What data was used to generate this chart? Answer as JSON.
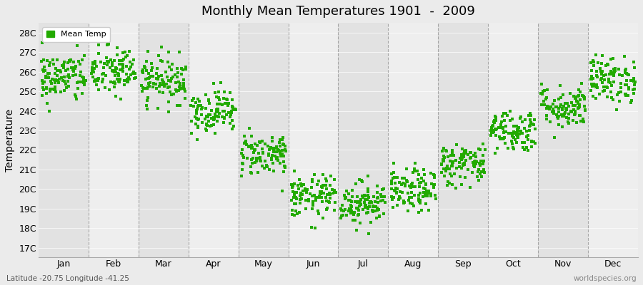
{
  "title": "Monthly Mean Temperatures 1901  -  2009",
  "ylabel": "Temperature",
  "bottom_left_label": "Latitude -20.75 Longitude -41.25",
  "bottom_right_label": "worldspecies.org",
  "legend_label": "Mean Temp",
  "months": [
    "Jan",
    "Feb",
    "Mar",
    "Apr",
    "May",
    "Jun",
    "Jul",
    "Aug",
    "Sep",
    "Oct",
    "Nov",
    "Dec"
  ],
  "month_means": [
    25.7,
    26.0,
    25.6,
    24.0,
    21.8,
    19.6,
    19.3,
    19.9,
    21.3,
    23.0,
    24.2,
    25.6
  ],
  "month_stds": [
    0.65,
    0.65,
    0.6,
    0.55,
    0.55,
    0.55,
    0.55,
    0.55,
    0.55,
    0.55,
    0.55,
    0.6
  ],
  "n_years": 109,
  "ylim_min": 17,
  "ylim_max": 28,
  "marker_color": "#22aa00",
  "marker_size": 5,
  "bg_color": "#ebebeb",
  "band_colors": [
    "#e2e2e2",
    "#eeeeee"
  ],
  "vline_color": "#888888",
  "title_fontsize": 13,
  "axis_fontsize": 10,
  "tick_fontsize": 9,
  "seed": 42
}
